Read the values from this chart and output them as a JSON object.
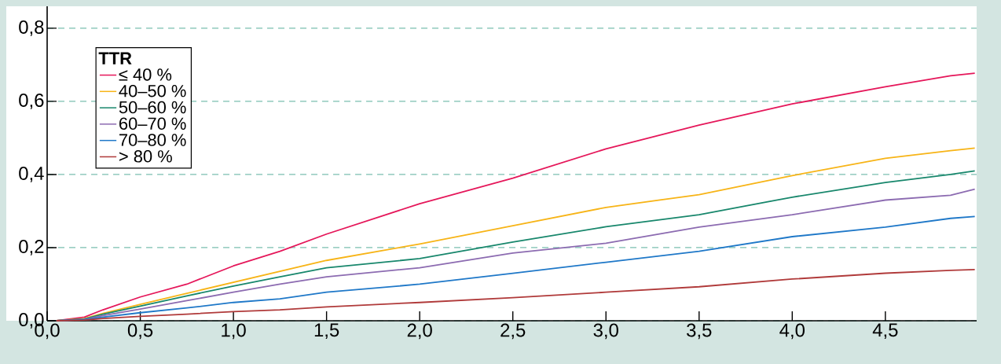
{
  "chart_data": {
    "type": "line",
    "legend_title": "TTR",
    "legend": "top left",
    "grid": "y",
    "line_style": "solid",
    "marker": "none",
    "xlim": [
      0,
      4.99
    ],
    "ylim": [
      0,
      0.86
    ],
    "xticks": [
      {
        "value": 0,
        "label": "0,0"
      },
      {
        "value": 0.5,
        "label": "0,5"
      },
      {
        "value": 1,
        "label": "1,0"
      },
      {
        "value": 1.5,
        "label": "1,5"
      },
      {
        "value": 2,
        "label": "2,0"
      },
      {
        "value": 2.5,
        "label": "2,5"
      },
      {
        "value": 3,
        "label": "3,0"
      },
      {
        "value": 3.5,
        "label": "3,5"
      },
      {
        "value": 4,
        "label": "4,0"
      },
      {
        "value": 4.5,
        "label": "4,5"
      }
    ],
    "yticks": [
      {
        "value": 0,
        "label": "0,0"
      },
      {
        "value": 0.2,
        "label": "0,2"
      },
      {
        "value": 0.4,
        "label": "0,4"
      },
      {
        "value": 0.6,
        "label": "0,6"
      },
      {
        "value": 0.8,
        "label": "0,8"
      }
    ],
    "x": [
      0.05,
      0.2,
      0.3,
      0.5,
      0.75,
      1.0,
      1.25,
      1.5,
      2.0,
      2.5,
      3.0,
      3.5,
      4.0,
      4.5,
      4.85,
      4.98
    ],
    "series": [
      {
        "name": "≤ 40 %",
        "color": "#e5175a",
        "values": [
          0,
          0.01,
          0.03,
          0.065,
          0.1,
          0.15,
          0.19,
          0.237,
          0.32,
          0.39,
          0.47,
          0.535,
          0.593,
          0.64,
          0.67,
          0.677
        ]
      },
      {
        "name": "40–50 %",
        "color": "#f7b417",
        "values": [
          0,
          0.006,
          0.02,
          0.045,
          0.075,
          0.105,
          0.135,
          0.165,
          0.21,
          0.26,
          0.31,
          0.345,
          0.397,
          0.444,
          0.465,
          0.472
        ]
      },
      {
        "name": "50–60 %",
        "color": "#18876c",
        "values": [
          0,
          0.005,
          0.018,
          0.04,
          0.068,
          0.095,
          0.12,
          0.145,
          0.17,
          0.215,
          0.257,
          0.29,
          0.338,
          0.378,
          0.4,
          0.41
        ]
      },
      {
        "name": "60–70 %",
        "color": "#8c6bb1",
        "values": [
          0,
          0.004,
          0.014,
          0.032,
          0.055,
          0.078,
          0.1,
          0.12,
          0.145,
          0.185,
          0.212,
          0.256,
          0.29,
          0.33,
          0.343,
          0.36
        ]
      },
      {
        "name": "70–80 %",
        "color": "#1f78c8",
        "values": [
          0,
          0.003,
          0.01,
          0.022,
          0.035,
          0.05,
          0.06,
          0.078,
          0.1,
          0.13,
          0.16,
          0.19,
          0.23,
          0.256,
          0.28,
          0.285
        ]
      },
      {
        "name": "> 80 %",
        "color": "#b03a3a",
        "values": [
          0,
          0.002,
          0.006,
          0.012,
          0.018,
          0.025,
          0.03,
          0.038,
          0.05,
          0.063,
          0.078,
          0.093,
          0.114,
          0.13,
          0.138,
          0.14
        ]
      }
    ]
  }
}
